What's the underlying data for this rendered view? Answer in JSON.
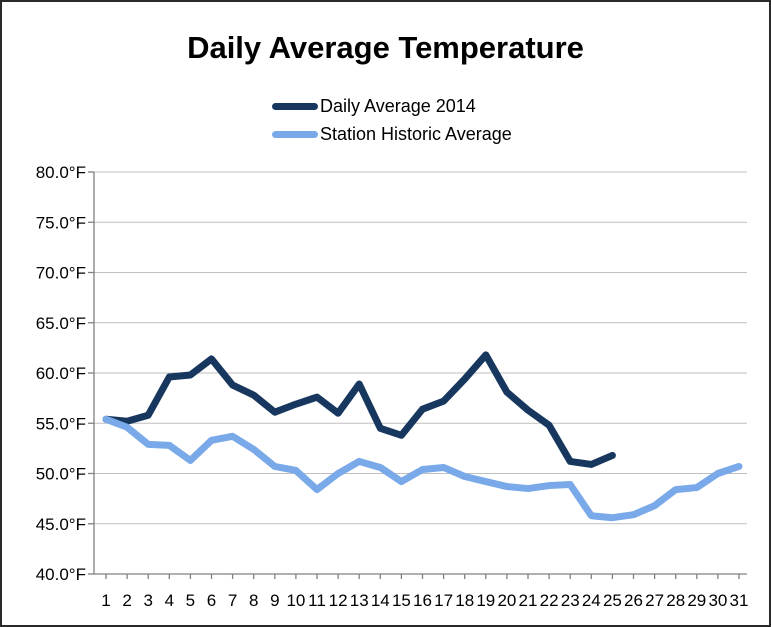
{
  "window": {
    "background": "#ffffff",
    "border_color": "#2a2a2a"
  },
  "chart_data": {
    "type": "line",
    "title": "Daily Average Temperature",
    "xlabel": "",
    "ylabel": "",
    "x": [
      1,
      2,
      3,
      4,
      5,
      6,
      7,
      8,
      9,
      10,
      11,
      12,
      13,
      14,
      15,
      16,
      17,
      18,
      19,
      20,
      21,
      22,
      23,
      24,
      25,
      26,
      27,
      28,
      29,
      30,
      31
    ],
    "xticks": [
      "1",
      "2",
      "3",
      "4",
      "5",
      "6",
      "7",
      "8",
      "9",
      "10",
      "11",
      "12",
      "13",
      "14",
      "15",
      "16",
      "17",
      "18",
      "19",
      "20",
      "21",
      "22",
      "23",
      "24",
      "25",
      "26",
      "27",
      "28",
      "29",
      "30",
      "31"
    ],
    "yticks": [
      "80.0°F",
      "75.0°F",
      "70.0°F",
      "65.0°F",
      "60.0°F",
      "55.0°F",
      "50.0°F",
      "45.0°F",
      "40.0°F"
    ],
    "ytick_values": [
      80,
      75,
      70,
      65,
      60,
      55,
      50,
      45,
      40
    ],
    "ylim": [
      40,
      80
    ],
    "grid": "horizontal",
    "gridline_color": "#bfbfbf",
    "axis_color": "#808080",
    "legend_position": "top-center",
    "series": [
      {
        "name": "Daily Average 2014",
        "color": "#17375E",
        "values": [
          55.4,
          55.2,
          55.8,
          59.6,
          59.8,
          61.4,
          58.8,
          57.8,
          56.1,
          56.9,
          57.6,
          56.0,
          58.9,
          54.5,
          53.8,
          56.4,
          57.2,
          59.4,
          61.8,
          58.1,
          56.3,
          54.8,
          51.2,
          50.9,
          51.8
        ]
      },
      {
        "name": "Station Historic Average",
        "color": "#79A9E8",
        "values": [
          55.4,
          54.6,
          52.9,
          52.8,
          51.3,
          53.3,
          53.7,
          52.4,
          50.7,
          50.3,
          48.4,
          50.0,
          51.2,
          50.6,
          49.2,
          50.4,
          50.6,
          49.7,
          49.2,
          48.7,
          48.5,
          48.8,
          48.9,
          45.8,
          45.6,
          45.9,
          46.8,
          48.4,
          48.6,
          50.0,
          50.7
        ]
      }
    ]
  }
}
